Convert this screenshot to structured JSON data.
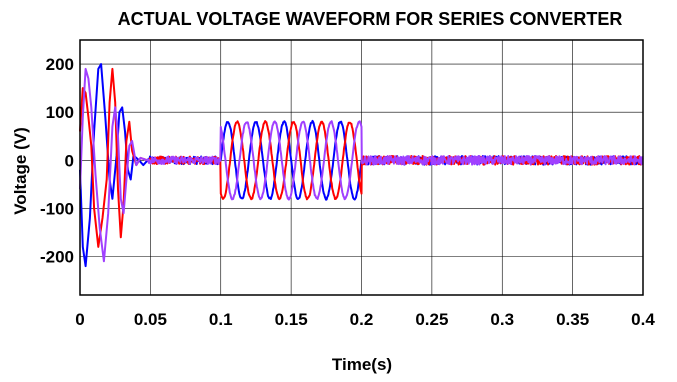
{
  "chart_data": {
    "type": "line",
    "title": "ACTUAL VOLTAGE WAVEFORM FOR SERIES CONVERTER",
    "xlabel": "Time(s)",
    "ylabel": "Voltage (V)",
    "xlim": [
      0,
      0.4
    ],
    "ylim": [
      -280,
      250
    ],
    "xticks": [
      0,
      0.05,
      0.1,
      0.15,
      0.2,
      0.25,
      0.3,
      0.35,
      0.4
    ],
    "xtick_labels": [
      "0",
      "0.05",
      "0.1",
      "0.15",
      "0.2",
      "0.25",
      "0.3",
      "0.35",
      "0.4"
    ],
    "yticks": [
      -200,
      -100,
      0,
      100,
      200
    ],
    "ytick_labels": [
      "-200",
      "-100",
      "0",
      "100",
      "200"
    ],
    "grid": true,
    "legend": "none",
    "sag_interval": [
      0.1,
      0.2
    ],
    "sag_amplitude": 80,
    "frequency_hz": 50,
    "series": [
      {
        "color": "#0000ff",
        "phase_deg": 0
      },
      {
        "color": "#ff0000",
        "phase_deg": -120
      },
      {
        "color": "#a040ff",
        "phase_deg": 120
      }
    ],
    "initial_transient": {
      "blue": [
        [
          0,
          -20
        ],
        [
          0.002,
          -180
        ],
        [
          0.004,
          -220
        ],
        [
          0.007,
          -120
        ],
        [
          0.01,
          60
        ],
        [
          0.013,
          190
        ],
        [
          0.015,
          200
        ],
        [
          0.018,
          90
        ],
        [
          0.021,
          -40
        ],
        [
          0.023,
          -80
        ],
        [
          0.026,
          10
        ],
        [
          0.028,
          100
        ],
        [
          0.03,
          110
        ],
        [
          0.032,
          60
        ],
        [
          0.034,
          -20
        ],
        [
          0.036,
          -40
        ],
        [
          0.038,
          10
        ],
        [
          0.04,
          5
        ],
        [
          0.042,
          0
        ],
        [
          0.045,
          -10
        ],
        [
          0.048,
          0
        ]
      ],
      "red": [
        [
          0,
          60
        ],
        [
          0.002,
          150
        ],
        [
          0.004,
          140
        ],
        [
          0.006,
          90
        ],
        [
          0.008,
          30
        ],
        [
          0.01,
          -100
        ],
        [
          0.013,
          -180
        ],
        [
          0.016,
          -120
        ],
        [
          0.019,
          -40
        ],
        [
          0.021,
          120
        ],
        [
          0.023,
          190
        ],
        [
          0.025,
          120
        ],
        [
          0.027,
          -60
        ],
        [
          0.029,
          -160
        ],
        [
          0.031,
          -90
        ],
        [
          0.033,
          40
        ],
        [
          0.035,
          80
        ],
        [
          0.037,
          20
        ],
        [
          0.04,
          -10
        ],
        [
          0.043,
          5
        ],
        [
          0.048,
          0
        ]
      ],
      "violet": [
        [
          0,
          -60
        ],
        [
          0.002,
          90
        ],
        [
          0.004,
          190
        ],
        [
          0.006,
          170
        ],
        [
          0.008,
          110
        ],
        [
          0.011,
          -30
        ],
        [
          0.014,
          -140
        ],
        [
          0.017,
          -210
        ],
        [
          0.02,
          -110
        ],
        [
          0.023,
          70
        ],
        [
          0.025,
          110
        ],
        [
          0.027,
          50
        ],
        [
          0.029,
          -80
        ],
        [
          0.031,
          -110
        ],
        [
          0.033,
          -40
        ],
        [
          0.035,
          30
        ],
        [
          0.037,
          40
        ],
        [
          0.04,
          -10
        ],
        [
          0.043,
          5
        ],
        [
          0.048,
          0
        ]
      ]
    }
  }
}
